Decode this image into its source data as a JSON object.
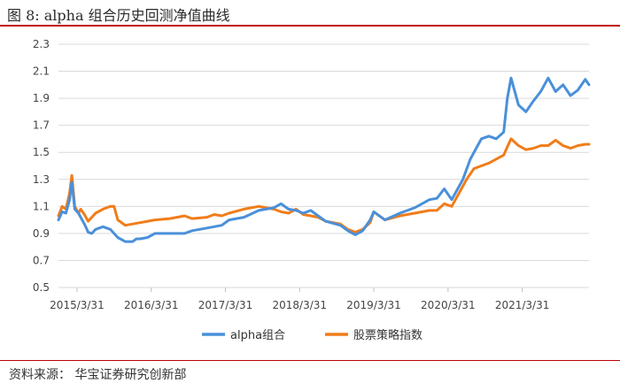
{
  "figure": {
    "title": "图 8:  alpha 组合历史回测净值曲线",
    "source": "资料来源：   华宝证券研究创新部"
  },
  "chart_data": {
    "type": "line",
    "title": "",
    "xlabel": "",
    "ylabel": "",
    "ylim": [
      0.5,
      2.3
    ],
    "yticks": [
      "2.3",
      "2.1",
      "1.9",
      "1.7",
      "1.5",
      "1.3",
      "1.1",
      "0.9",
      "0.7",
      "0.5"
    ],
    "xticks": [
      "2015/3/31",
      "2016/3/31",
      "2017/3/31",
      "2018/3/31",
      "2019/3/31",
      "2020/3/31",
      "2021/3/31"
    ],
    "grid": "horizontal",
    "legend": "bottom",
    "colors": {
      "alpha": "#4a90d9",
      "index": "#f07d1a"
    },
    "series": [
      {
        "name": "alpha组合",
        "x": [
          2015.0,
          2015.05,
          2015.1,
          2015.15,
          2015.18,
          2015.22,
          2015.27,
          2015.3,
          2015.35,
          2015.4,
          2015.45,
          2015.5,
          2015.6,
          2015.7,
          2015.8,
          2015.9,
          2016.0,
          2016.05,
          2016.1,
          2016.2,
          2016.3,
          2016.5,
          2016.7,
          2016.8,
          2017.0,
          2017.2,
          2017.3,
          2017.5,
          2017.7,
          2017.9,
          2018.0,
          2018.1,
          2018.2,
          2018.3,
          2018.4,
          2018.5,
          2018.6,
          2018.8,
          2018.9,
          2019.0,
          2019.1,
          2019.2,
          2019.25,
          2019.4,
          2019.6,
          2019.8,
          2020.0,
          2020.1,
          2020.2,
          2020.3,
          2020.35,
          2020.45,
          2020.55,
          2020.7,
          2020.8,
          2020.9,
          2021.0,
          2021.05,
          2021.1,
          2021.2,
          2021.3,
          2021.4,
          2021.5,
          2021.6,
          2021.7,
          2021.8,
          2021.9,
          2022.0,
          2022.1,
          2022.15
        ],
        "values": [
          1.0,
          1.06,
          1.05,
          1.15,
          1.28,
          1.08,
          1.05,
          1.02,
          0.97,
          0.91,
          0.9,
          0.93,
          0.95,
          0.93,
          0.87,
          0.84,
          0.84,
          0.86,
          0.86,
          0.87,
          0.9,
          0.9,
          0.9,
          0.92,
          0.94,
          0.96,
          1.0,
          1.02,
          1.07,
          1.09,
          1.12,
          1.08,
          1.07,
          1.05,
          1.07,
          1.03,
          0.99,
          0.96,
          0.92,
          0.89,
          0.92,
          1.0,
          1.06,
          1.0,
          1.05,
          1.09,
          1.15,
          1.16,
          1.23,
          1.15,
          1.2,
          1.3,
          1.45,
          1.6,
          1.62,
          1.6,
          1.65,
          1.9,
          2.05,
          1.85,
          1.8,
          1.88,
          1.95,
          2.05,
          1.95,
          2.0,
          1.92,
          1.96,
          2.04,
          2.0
        ]
      },
      {
        "name": "股票策略指数",
        "x": [
          2015.0,
          2015.05,
          2015.1,
          2015.15,
          2015.18,
          2015.22,
          2015.27,
          2015.3,
          2015.35,
          2015.4,
          2015.5,
          2015.6,
          2015.7,
          2015.75,
          2015.8,
          2015.9,
          2016.0,
          2016.1,
          2016.3,
          2016.5,
          2016.7,
          2016.8,
          2017.0,
          2017.1,
          2017.2,
          2017.3,
          2017.5,
          2017.7,
          2017.9,
          2018.0,
          2018.1,
          2018.2,
          2018.3,
          2018.4,
          2018.5,
          2018.6,
          2018.8,
          2018.9,
          2019.0,
          2019.1,
          2019.2,
          2019.25,
          2019.4,
          2019.6,
          2019.8,
          2020.0,
          2020.1,
          2020.2,
          2020.3,
          2020.4,
          2020.5,
          2020.6,
          2020.7,
          2020.8,
          2021.0,
          2021.05,
          2021.1,
          2021.2,
          2021.3,
          2021.4,
          2021.5,
          2021.6,
          2021.7,
          2021.8,
          2021.9,
          2022.0,
          2022.1,
          2022.15
        ],
        "values": [
          1.03,
          1.1,
          1.08,
          1.2,
          1.33,
          1.1,
          1.05,
          1.08,
          1.04,
          0.99,
          1.05,
          1.08,
          1.1,
          1.1,
          1.0,
          0.96,
          0.97,
          0.98,
          1.0,
          1.01,
          1.03,
          1.01,
          1.02,
          1.04,
          1.03,
          1.05,
          1.08,
          1.1,
          1.08,
          1.06,
          1.05,
          1.08,
          1.04,
          1.03,
          1.02,
          0.99,
          0.97,
          0.93,
          0.91,
          0.93,
          0.98,
          1.06,
          1.0,
          1.03,
          1.05,
          1.07,
          1.07,
          1.12,
          1.1,
          1.2,
          1.3,
          1.38,
          1.4,
          1.42,
          1.48,
          1.54,
          1.6,
          1.55,
          1.52,
          1.53,
          1.55,
          1.55,
          1.59,
          1.55,
          1.53,
          1.55,
          1.56,
          1.56
        ]
      }
    ]
  }
}
